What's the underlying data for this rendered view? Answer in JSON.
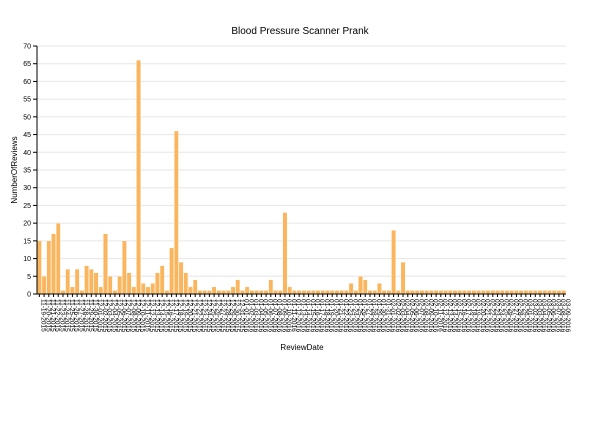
{
  "chart_data": {
    "type": "bar",
    "title": "Blood Pressure Scanner Prank",
    "xlabel": "ReviewDate",
    "ylabel": "NumberOfReviews",
    "ylim": [
      0,
      70
    ],
    "yticks": [
      0,
      5,
      10,
      15,
      20,
      25,
      30,
      35,
      40,
      45,
      50,
      55,
      60,
      65,
      70
    ],
    "grid": true,
    "bar_color": "#f9b65e",
    "categories": [
      "11-19-2015",
      "11-20-2015",
      "11-21-2015",
      "11-22-2015",
      "11-23-2015",
      "11-24-2015",
      "11-25-2015",
      "11-26-2015",
      "11-27-2015",
      "11-28-2015",
      "11-29-2015",
      "11-30-2015",
      "12-01-2015",
      "12-02-2015",
      "12-03-2015",
      "12-04-2015",
      "12-05-2015",
      "12-06-2015",
      "12-07-2015",
      "12-08-2015",
      "12-09-2015",
      "12-10-2015",
      "12-11-2015",
      "12-12-2015",
      "12-13-2015",
      "12-14-2015",
      "12-15-2015",
      "12-16-2015",
      "12-17-2015",
      "12-18-2015",
      "12-19-2015",
      "12-20-2015",
      "12-21-2015",
      "12-22-2015",
      "12-23-2015",
      "12-24-2015",
      "12-25-2015",
      "12-26-2015",
      "12-27-2015",
      "12-28-2015",
      "12-29-2015",
      "12-30-2015",
      "12-31-2015",
      "01-01-2016",
      "01-02-2016",
      "01-03-2016",
      "01-04-2016",
      "01-05-2016",
      "01-06-2016",
      "01-07-2016",
      "01-08-2016",
      "01-09-2016",
      "01-10-2016",
      "01-11-2016",
      "01-12-2016",
      "01-13-2016",
      "01-14-2016",
      "01-15-2016",
      "01-16-2016",
      "01-17-2016",
      "01-18-2016",
      "01-19-2016",
      "01-20-2016",
      "01-21-2016",
      "01-22-2016",
      "01-23-2016",
      "01-24-2016",
      "01-25-2016",
      "01-26-2016",
      "01-27-2016",
      "01-28-2016",
      "01-29-2016",
      "01-30-2016",
      "01-31-2016",
      "02-01-2016",
      "02-02-2016",
      "02-03-2016",
      "02-04-2016",
      "02-05-2016",
      "02-06-2016",
      "02-07-2016",
      "02-08-2016",
      "02-09-2016",
      "02-10-2016",
      "02-11-2016",
      "02-12-2016",
      "02-13-2016",
      "02-14-2016",
      "02-15-2016",
      "02-16-2016",
      "02-17-2016",
      "02-18-2016",
      "02-19-2016",
      "02-20-2016",
      "02-21-2016",
      "02-22-2016",
      "02-23-2016",
      "02-24-2016",
      "02-25-2016",
      "02-26-2016",
      "02-27-2016",
      "02-28-2016",
      "02-29-2016",
      "03-01-2016",
      "03-02-2016",
      "03-03-2016",
      "03-04-2016",
      "03-05-2016",
      "03-06-2016",
      "03-07-2016",
      "03-08-2016",
      "03-09-2016"
    ],
    "values": [
      15,
      5,
      15,
      17,
      20,
      1,
      7,
      2,
      7,
      1,
      8,
      7,
      6,
      2,
      17,
      5,
      1,
      5,
      15,
      6,
      2,
      66,
      3,
      2,
      3,
      6,
      8,
      1,
      13,
      46,
      9,
      6,
      2,
      4,
      1,
      1,
      1,
      2,
      1,
      1,
      1,
      2,
      4,
      1,
      2,
      1,
      1,
      1,
      1,
      4,
      1,
      1,
      23,
      2,
      1,
      1,
      1,
      1,
      1,
      1,
      1,
      1,
      1,
      1,
      1,
      1,
      3,
      1,
      5,
      4,
      1,
      1,
      3,
      1,
      1,
      18,
      1,
      9,
      1,
      1,
      1,
      1,
      1,
      1,
      1,
      1,
      1,
      1,
      1,
      1,
      1,
      1,
      1,
      1,
      1,
      1,
      1,
      1,
      1,
      1,
      1,
      1,
      1,
      1,
      1,
      1,
      1,
      1,
      1,
      1,
      1,
      1
    ]
  }
}
